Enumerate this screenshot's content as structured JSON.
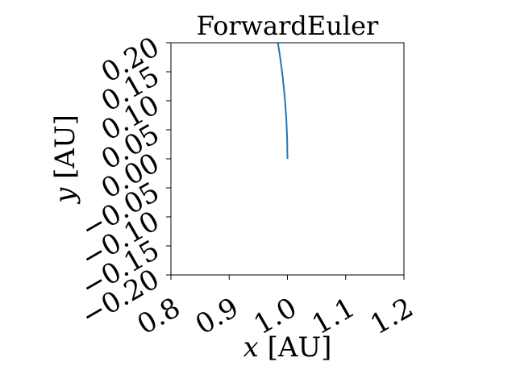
{
  "chart_data": {
    "type": "line",
    "title": "ForwardEuler",
    "xlabel_var": "x",
    "xlabel_unit": "[AU]",
    "ylabel_var": "y",
    "ylabel_unit": "[AU]",
    "xlim": [
      0.8,
      1.2
    ],
    "ylim": [
      -0.2,
      0.2
    ],
    "xticks": [
      0.8,
      0.9,
      1.0,
      1.1,
      1.2
    ],
    "xtick_labels": [
      "0.8",
      "0.9",
      "1.0",
      "1.1",
      "1.2"
    ],
    "yticks": [
      -0.2,
      -0.15,
      -0.1,
      -0.05,
      0.0,
      0.05,
      0.1,
      0.15,
      0.2
    ],
    "ytick_labels": [
      "−0.20",
      "−0.15",
      "−0.10",
      "−0.05",
      "0.00",
      "0.05",
      "0.10",
      "0.15",
      "0.20"
    ],
    "grid": false,
    "series": [
      {
        "color": "#1f77b4",
        "x": [
          1.0,
          0.9995,
          0.998,
          0.9955,
          0.992,
          0.9875,
          0.982,
          0.9785
        ],
        "y": [
          0.0,
          0.035,
          0.07,
          0.105,
          0.14,
          0.175,
          0.21,
          0.23
        ]
      }
    ]
  }
}
